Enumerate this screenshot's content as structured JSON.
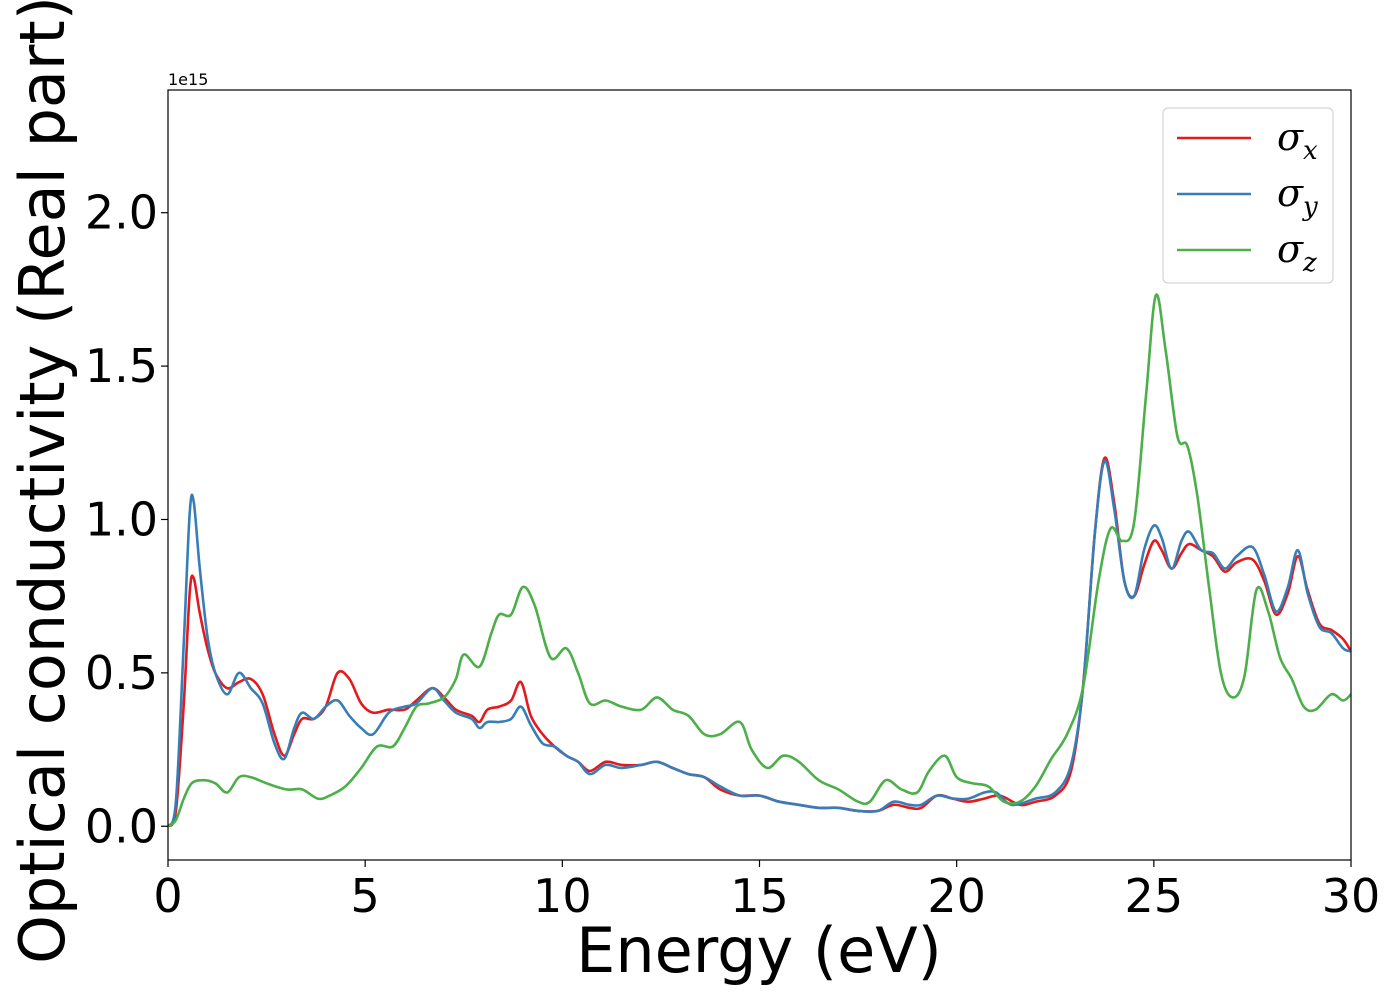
{
  "chart_data": {
    "type": "line",
    "title": "",
    "xlabel": "Energy (eV)",
    "ylabel": "Optical conductivity (Real part)",
    "y_offset_label": "1e15",
    "xlim": [
      0,
      30
    ],
    "ylim": [
      -0.11,
      2.4
    ],
    "xticks": [
      0,
      5,
      10,
      15,
      20,
      25,
      30
    ],
    "xtick_labels": [
      "0",
      "5",
      "10",
      "15",
      "20",
      "25",
      "30"
    ],
    "yticks": [
      0.0,
      0.5,
      1.0,
      1.5,
      2.0
    ],
    "ytick_labels": [
      "0.0",
      "0.5",
      "1.0",
      "1.5",
      "2.0"
    ],
    "grid": false,
    "legend_placement": "top-right",
    "series": [
      {
        "name": "σ_x",
        "symbol": "σ",
        "subscript": "x",
        "color": "#e41a1c",
        "points": [
          [
            0,
            0.0
          ],
          [
            0.2,
            0.05
          ],
          [
            0.4,
            0.4
          ],
          [
            0.55,
            0.76
          ],
          [
            0.65,
            0.81
          ],
          [
            0.8,
            0.7
          ],
          [
            1.0,
            0.58
          ],
          [
            1.2,
            0.5
          ],
          [
            1.5,
            0.45
          ],
          [
            1.8,
            0.47
          ],
          [
            2.1,
            0.48
          ],
          [
            2.4,
            0.43
          ],
          [
            2.7,
            0.3
          ],
          [
            2.95,
            0.23
          ],
          [
            3.2,
            0.3
          ],
          [
            3.4,
            0.35
          ],
          [
            3.7,
            0.35
          ],
          [
            4.0,
            0.39
          ],
          [
            4.3,
            0.5
          ],
          [
            4.6,
            0.48
          ],
          [
            4.9,
            0.4
          ],
          [
            5.2,
            0.37
          ],
          [
            5.6,
            0.38
          ],
          [
            6.0,
            0.38
          ],
          [
            6.3,
            0.41
          ],
          [
            6.7,
            0.45
          ],
          [
            7.0,
            0.42
          ],
          [
            7.3,
            0.38
          ],
          [
            7.7,
            0.36
          ],
          [
            7.9,
            0.34
          ],
          [
            8.1,
            0.38
          ],
          [
            8.4,
            0.39
          ],
          [
            8.7,
            0.41
          ],
          [
            8.95,
            0.47
          ],
          [
            9.2,
            0.36
          ],
          [
            9.5,
            0.3
          ],
          [
            9.8,
            0.26
          ],
          [
            10.1,
            0.23
          ],
          [
            10.4,
            0.21
          ],
          [
            10.7,
            0.18
          ],
          [
            11.1,
            0.21
          ],
          [
            11.5,
            0.2
          ],
          [
            12.0,
            0.2
          ],
          [
            12.4,
            0.21
          ],
          [
            12.8,
            0.19
          ],
          [
            13.2,
            0.17
          ],
          [
            13.6,
            0.16
          ],
          [
            14.0,
            0.12
          ],
          [
            14.5,
            0.1
          ],
          [
            15.0,
            0.1
          ],
          [
            15.5,
            0.08
          ],
          [
            16.0,
            0.07
          ],
          [
            16.5,
            0.06
          ],
          [
            17.0,
            0.06
          ],
          [
            17.5,
            0.05
          ],
          [
            18.0,
            0.05
          ],
          [
            18.4,
            0.07
          ],
          [
            18.8,
            0.06
          ],
          [
            19.1,
            0.06
          ],
          [
            19.5,
            0.1
          ],
          [
            19.9,
            0.09
          ],
          [
            20.3,
            0.08
          ],
          [
            20.7,
            0.09
          ],
          [
            21.1,
            0.1
          ],
          [
            21.6,
            0.07
          ],
          [
            22.0,
            0.08
          ],
          [
            22.5,
            0.1
          ],
          [
            22.9,
            0.18
          ],
          [
            23.2,
            0.45
          ],
          [
            23.5,
            0.95
          ],
          [
            23.75,
            1.2
          ],
          [
            24.0,
            1.05
          ],
          [
            24.25,
            0.8
          ],
          [
            24.5,
            0.75
          ],
          [
            24.75,
            0.85
          ],
          [
            25.0,
            0.93
          ],
          [
            25.2,
            0.9
          ],
          [
            25.45,
            0.84
          ],
          [
            25.7,
            0.89
          ],
          [
            25.9,
            0.92
          ],
          [
            26.2,
            0.9
          ],
          [
            26.5,
            0.88
          ],
          [
            26.8,
            0.83
          ],
          [
            27.1,
            0.86
          ],
          [
            27.5,
            0.87
          ],
          [
            27.8,
            0.8
          ],
          [
            28.1,
            0.69
          ],
          [
            28.4,
            0.76
          ],
          [
            28.65,
            0.88
          ],
          [
            28.9,
            0.77
          ],
          [
            29.2,
            0.66
          ],
          [
            29.5,
            0.64
          ],
          [
            29.8,
            0.61
          ],
          [
            30.0,
            0.57
          ]
        ]
      },
      {
        "name": "σ_y",
        "symbol": "σ",
        "subscript": "y",
        "color": "#377eb8",
        "points": [
          [
            0,
            0.0
          ],
          [
            0.2,
            0.08
          ],
          [
            0.4,
            0.6
          ],
          [
            0.55,
            1.02
          ],
          [
            0.65,
            1.06
          ],
          [
            0.8,
            0.85
          ],
          [
            1.0,
            0.62
          ],
          [
            1.2,
            0.5
          ],
          [
            1.5,
            0.43
          ],
          [
            1.8,
            0.5
          ],
          [
            2.1,
            0.45
          ],
          [
            2.4,
            0.4
          ],
          [
            2.7,
            0.27
          ],
          [
            2.95,
            0.22
          ],
          [
            3.2,
            0.32
          ],
          [
            3.4,
            0.37
          ],
          [
            3.7,
            0.35
          ],
          [
            4.0,
            0.39
          ],
          [
            4.3,
            0.41
          ],
          [
            4.6,
            0.36
          ],
          [
            4.9,
            0.32
          ],
          [
            5.2,
            0.3
          ],
          [
            5.6,
            0.37
          ],
          [
            6.0,
            0.39
          ],
          [
            6.3,
            0.4
          ],
          [
            6.7,
            0.45
          ],
          [
            7.0,
            0.41
          ],
          [
            7.3,
            0.37
          ],
          [
            7.7,
            0.35
          ],
          [
            7.9,
            0.32
          ],
          [
            8.1,
            0.34
          ],
          [
            8.4,
            0.34
          ],
          [
            8.7,
            0.35
          ],
          [
            8.95,
            0.39
          ],
          [
            9.2,
            0.33
          ],
          [
            9.5,
            0.27
          ],
          [
            9.8,
            0.26
          ],
          [
            10.1,
            0.23
          ],
          [
            10.4,
            0.21
          ],
          [
            10.7,
            0.17
          ],
          [
            11.1,
            0.2
          ],
          [
            11.5,
            0.19
          ],
          [
            12.0,
            0.2
          ],
          [
            12.4,
            0.21
          ],
          [
            12.8,
            0.19
          ],
          [
            13.2,
            0.17
          ],
          [
            13.6,
            0.16
          ],
          [
            14.0,
            0.13
          ],
          [
            14.5,
            0.1
          ],
          [
            15.0,
            0.1
          ],
          [
            15.5,
            0.08
          ],
          [
            16.0,
            0.07
          ],
          [
            16.5,
            0.06
          ],
          [
            17.0,
            0.06
          ],
          [
            17.5,
            0.05
          ],
          [
            18.0,
            0.05
          ],
          [
            18.4,
            0.08
          ],
          [
            18.8,
            0.07
          ],
          [
            19.1,
            0.07
          ],
          [
            19.5,
            0.1
          ],
          [
            19.9,
            0.09
          ],
          [
            20.3,
            0.09
          ],
          [
            20.7,
            0.11
          ],
          [
            21.0,
            0.11
          ],
          [
            21.4,
            0.07
          ],
          [
            22.0,
            0.09
          ],
          [
            22.5,
            0.11
          ],
          [
            22.9,
            0.2
          ],
          [
            23.2,
            0.45
          ],
          [
            23.5,
            0.95
          ],
          [
            23.75,
            1.19
          ],
          [
            24.0,
            1.03
          ],
          [
            24.25,
            0.8
          ],
          [
            24.5,
            0.75
          ],
          [
            24.75,
            0.9
          ],
          [
            25.0,
            0.98
          ],
          [
            25.2,
            0.94
          ],
          [
            25.45,
            0.84
          ],
          [
            25.7,
            0.93
          ],
          [
            25.9,
            0.96
          ],
          [
            26.2,
            0.9
          ],
          [
            26.5,
            0.89
          ],
          [
            26.8,
            0.84
          ],
          [
            27.1,
            0.88
          ],
          [
            27.5,
            0.91
          ],
          [
            27.8,
            0.82
          ],
          [
            28.1,
            0.7
          ],
          [
            28.4,
            0.78
          ],
          [
            28.65,
            0.9
          ],
          [
            28.9,
            0.76
          ],
          [
            29.2,
            0.65
          ],
          [
            29.5,
            0.63
          ],
          [
            29.8,
            0.58
          ],
          [
            30.0,
            0.57
          ]
        ]
      },
      {
        "name": "σ_z",
        "symbol": "σ",
        "subscript": "z",
        "color": "#4daf4a",
        "points": [
          [
            0,
            0.0
          ],
          [
            0.2,
            0.02
          ],
          [
            0.4,
            0.09
          ],
          [
            0.6,
            0.14
          ],
          [
            0.9,
            0.15
          ],
          [
            1.2,
            0.14
          ],
          [
            1.5,
            0.11
          ],
          [
            1.8,
            0.16
          ],
          [
            2.1,
            0.16
          ],
          [
            2.5,
            0.14
          ],
          [
            3.0,
            0.12
          ],
          [
            3.4,
            0.12
          ],
          [
            3.8,
            0.09
          ],
          [
            4.1,
            0.1
          ],
          [
            4.5,
            0.13
          ],
          [
            4.9,
            0.19
          ],
          [
            5.3,
            0.26
          ],
          [
            5.7,
            0.26
          ],
          [
            6.0,
            0.32
          ],
          [
            6.3,
            0.39
          ],
          [
            6.6,
            0.4
          ],
          [
            7.0,
            0.42
          ],
          [
            7.3,
            0.48
          ],
          [
            7.5,
            0.56
          ],
          [
            7.9,
            0.52
          ],
          [
            8.2,
            0.63
          ],
          [
            8.4,
            0.69
          ],
          [
            8.7,
            0.69
          ],
          [
            9.0,
            0.78
          ],
          [
            9.3,
            0.72
          ],
          [
            9.7,
            0.55
          ],
          [
            10.1,
            0.58
          ],
          [
            10.4,
            0.5
          ],
          [
            10.7,
            0.4
          ],
          [
            11.1,
            0.41
          ],
          [
            11.5,
            0.39
          ],
          [
            12.0,
            0.38
          ],
          [
            12.4,
            0.42
          ],
          [
            12.8,
            0.38
          ],
          [
            13.2,
            0.36
          ],
          [
            13.6,
            0.3
          ],
          [
            14.0,
            0.3
          ],
          [
            14.5,
            0.34
          ],
          [
            14.8,
            0.25
          ],
          [
            15.2,
            0.19
          ],
          [
            15.6,
            0.23
          ],
          [
            16.0,
            0.21
          ],
          [
            16.5,
            0.15
          ],
          [
            17.0,
            0.12
          ],
          [
            17.5,
            0.08
          ],
          [
            17.8,
            0.08
          ],
          [
            18.2,
            0.15
          ],
          [
            18.6,
            0.12
          ],
          [
            19.0,
            0.11
          ],
          [
            19.3,
            0.18
          ],
          [
            19.7,
            0.23
          ],
          [
            20.0,
            0.16
          ],
          [
            20.4,
            0.14
          ],
          [
            20.8,
            0.13
          ],
          [
            21.2,
            0.08
          ],
          [
            21.6,
            0.08
          ],
          [
            22.0,
            0.13
          ],
          [
            22.4,
            0.22
          ],
          [
            22.8,
            0.3
          ],
          [
            23.2,
            0.45
          ],
          [
            23.6,
            0.8
          ],
          [
            23.9,
            0.97
          ],
          [
            24.2,
            0.93
          ],
          [
            24.5,
            0.99
          ],
          [
            24.8,
            1.4
          ],
          [
            25.05,
            1.73
          ],
          [
            25.3,
            1.55
          ],
          [
            25.6,
            1.27
          ],
          [
            25.85,
            1.24
          ],
          [
            26.1,
            1.08
          ],
          [
            26.4,
            0.78
          ],
          [
            26.7,
            0.5
          ],
          [
            27.0,
            0.42
          ],
          [
            27.3,
            0.49
          ],
          [
            27.6,
            0.77
          ],
          [
            27.9,
            0.7
          ],
          [
            28.2,
            0.55
          ],
          [
            28.5,
            0.48
          ],
          [
            28.8,
            0.39
          ],
          [
            29.1,
            0.38
          ],
          [
            29.5,
            0.43
          ],
          [
            29.8,
            0.41
          ],
          [
            30.0,
            0.43
          ]
        ]
      }
    ]
  }
}
